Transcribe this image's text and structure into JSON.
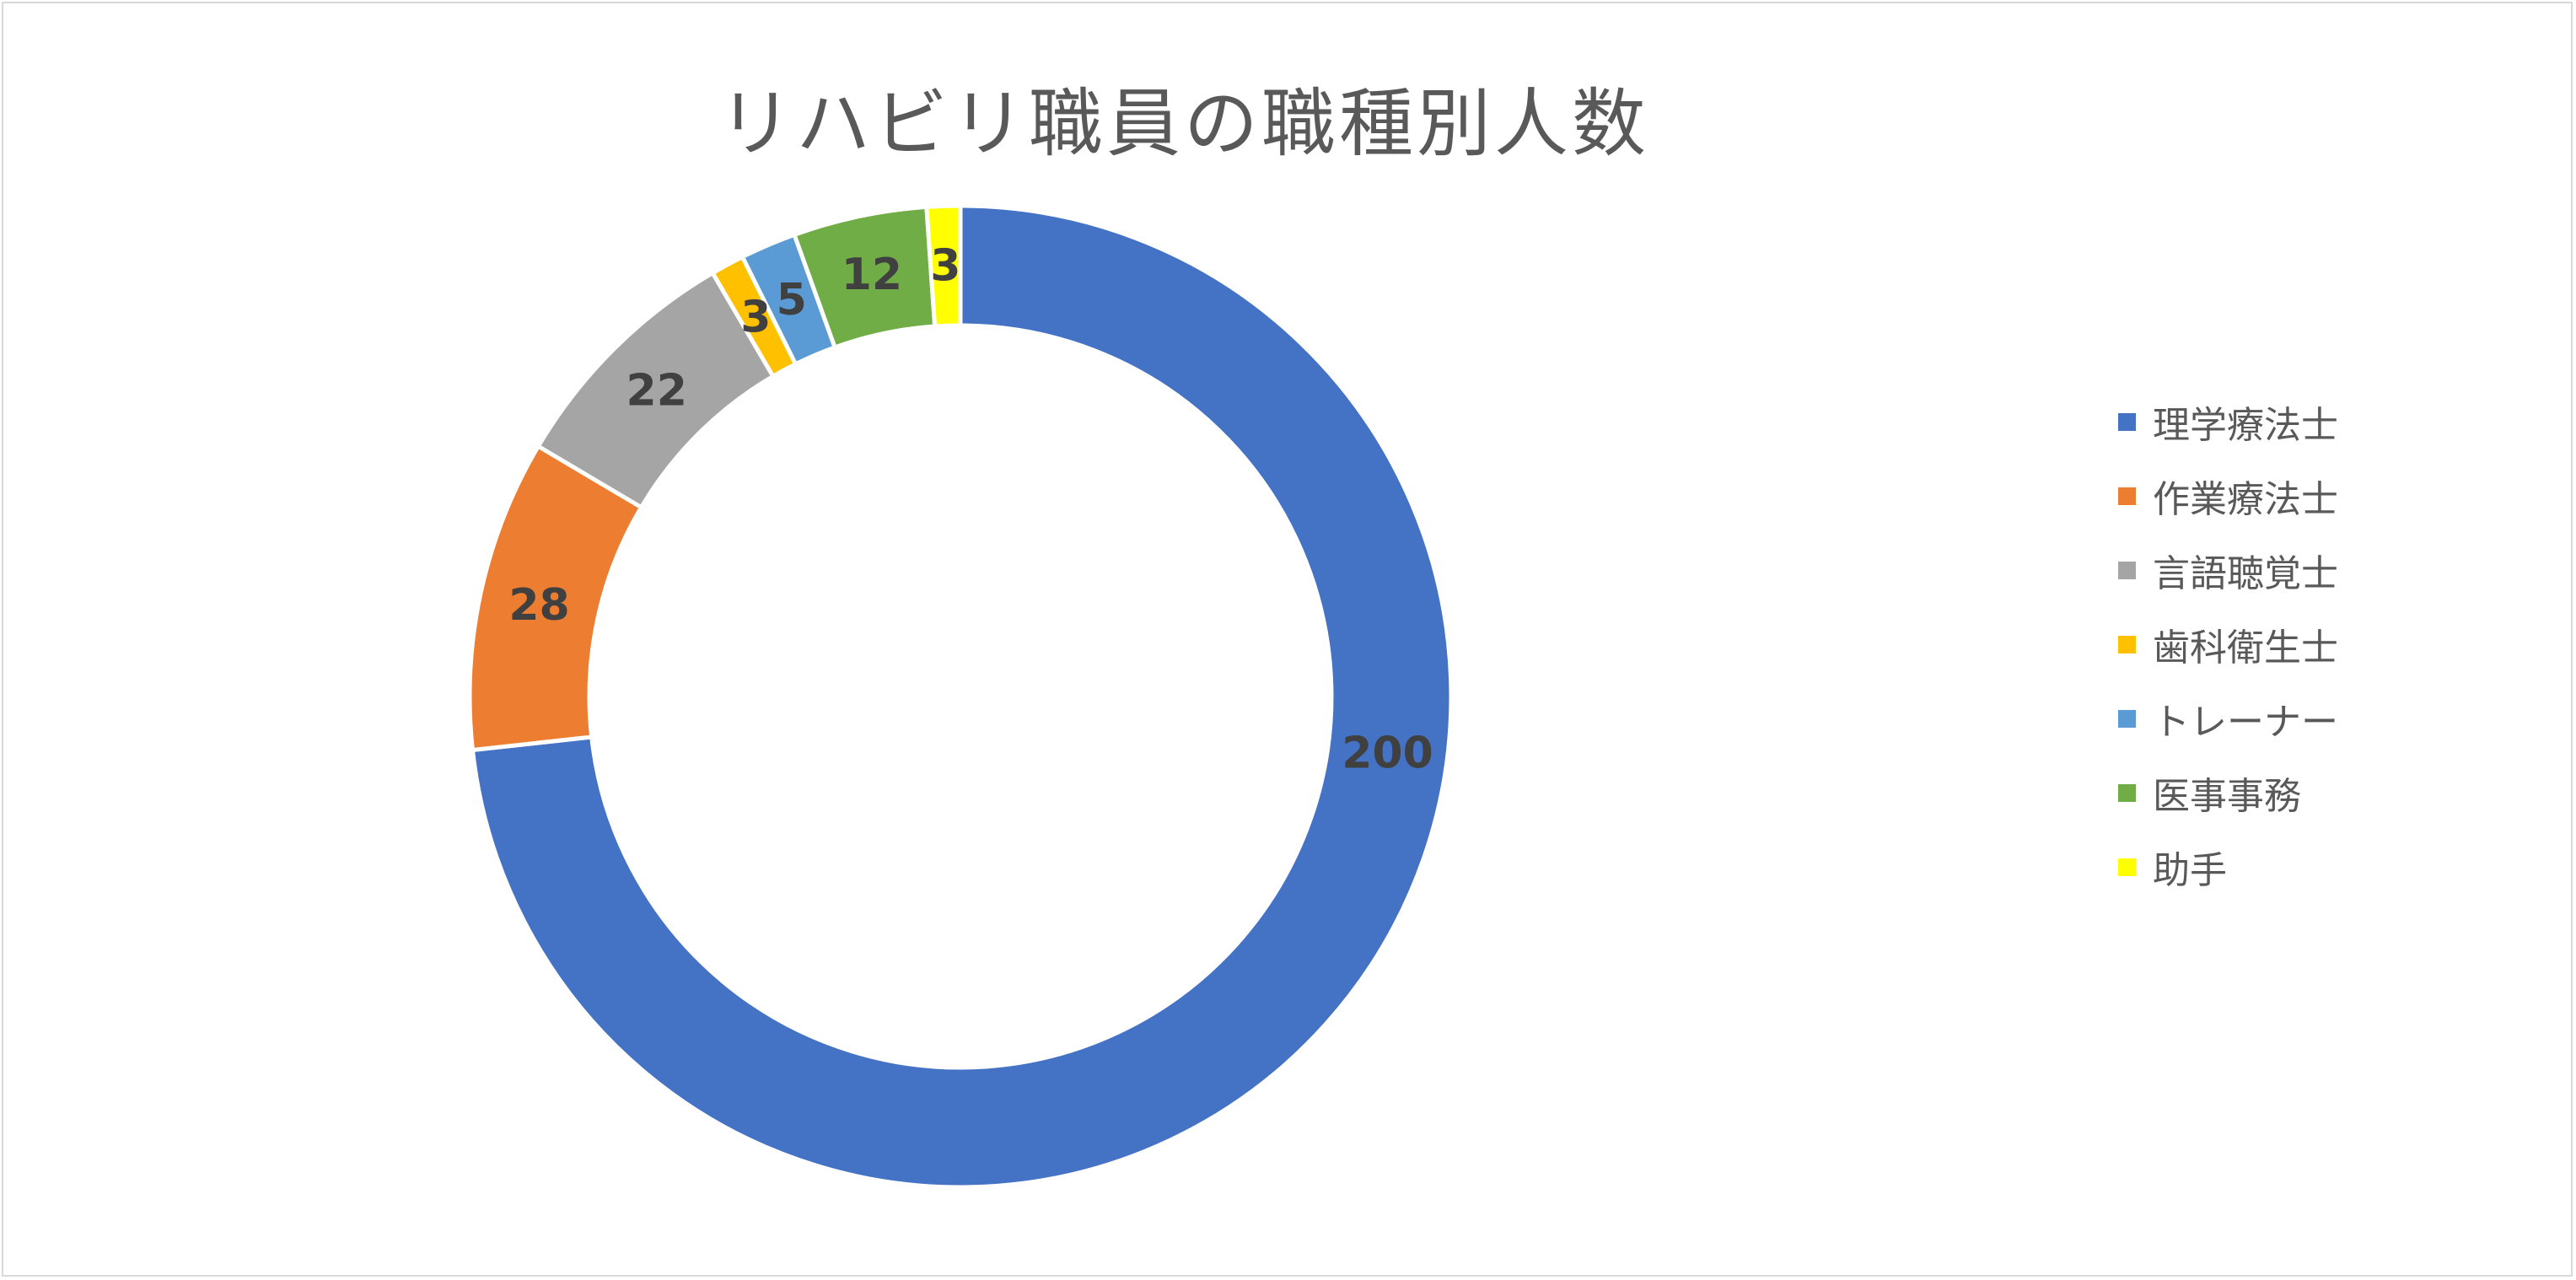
{
  "chart_data": {
    "type": "pie",
    "variant": "donut",
    "title": "リハビリ職員の職種別人数",
    "categories": [
      "理学療法士",
      "作業療法士",
      "言語聴覚士",
      "歯科衛生士",
      "トレーナー",
      "医事事務",
      "助手"
    ],
    "values": [
      200,
      28,
      22,
      3,
      5,
      12,
      3
    ],
    "colors": [
      "#4472C4",
      "#ED7D31",
      "#A5A5A5",
      "#FFC000",
      "#5B9BD5",
      "#70AD47",
      "#FFFF00"
    ],
    "data_labels": [
      "200",
      "28",
      "22",
      "3",
      "5",
      "12",
      "3"
    ],
    "legend_position": "right"
  }
}
